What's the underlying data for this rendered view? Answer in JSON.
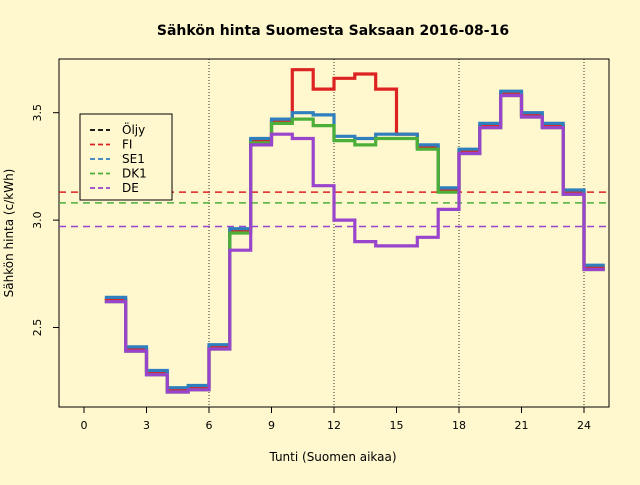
{
  "chart_data": {
    "type": "line",
    "step": true,
    "title": "Sähkön hinta Suomesta Saksaan 2016-08-16",
    "xlabel": "Tunti (Suomen aikaa)",
    "ylabel": "Sähkön hinta (c/kWh)",
    "xlim": [
      -1.2,
      25.2
    ],
    "ylim": [
      2.13,
      3.75
    ],
    "x_ticks": [
      0,
      3,
      6,
      9,
      12,
      15,
      18,
      21,
      24
    ],
    "y_ticks": [
      2.5,
      3.0,
      3.5
    ],
    "y_tick_labels": [
      "2.5",
      "3.0",
      "3.5"
    ],
    "vlines": [
      6,
      12,
      18,
      24
    ],
    "legend_position": "top-left",
    "hlines": [
      {
        "series": "FI",
        "value": 3.13
      },
      {
        "series": "DK1",
        "value": 3.08
      },
      {
        "series": "DE",
        "value": 2.97
      }
    ],
    "series": [
      {
        "name": "Öljy",
        "color": "#000000",
        "draw_line": false,
        "values": []
      },
      {
        "name": "FI",
        "color": "#dd2222",
        "values": [
          2.63,
          2.4,
          2.29,
          2.21,
          2.22,
          2.41,
          2.95,
          3.37,
          3.46,
          3.7,
          3.61,
          3.66,
          3.68,
          3.61,
          3.4,
          3.34,
          3.14,
          3.32,
          3.44,
          3.59,
          3.49,
          3.44,
          3.13,
          2.78
        ]
      },
      {
        "name": "SE1",
        "color": "#2f7fbf",
        "values": [
          2.64,
          2.41,
          2.3,
          2.22,
          2.23,
          2.42,
          2.96,
          3.38,
          3.47,
          3.5,
          3.49,
          3.39,
          3.38,
          3.4,
          3.4,
          3.35,
          3.15,
          3.33,
          3.45,
          3.6,
          3.5,
          3.45,
          3.14,
          2.79
        ]
      },
      {
        "name": "DK1",
        "color": "#4caf3a",
        "values": [
          2.62,
          2.39,
          2.28,
          2.2,
          2.21,
          2.4,
          2.94,
          3.36,
          3.45,
          3.47,
          3.44,
          3.37,
          3.35,
          3.38,
          3.38,
          3.33,
          3.13,
          3.31,
          3.43,
          3.58,
          3.48,
          3.43,
          3.12,
          2.77
        ]
      },
      {
        "name": "DE",
        "color": "#9944cc",
        "values": [
          2.62,
          2.39,
          2.28,
          2.2,
          2.21,
          2.4,
          2.86,
          3.35,
          3.4,
          3.38,
          3.16,
          3.0,
          2.9,
          2.88,
          2.88,
          2.92,
          3.05,
          3.31,
          3.43,
          3.58,
          3.48,
          3.43,
          3.12,
          2.77
        ]
      }
    ]
  }
}
